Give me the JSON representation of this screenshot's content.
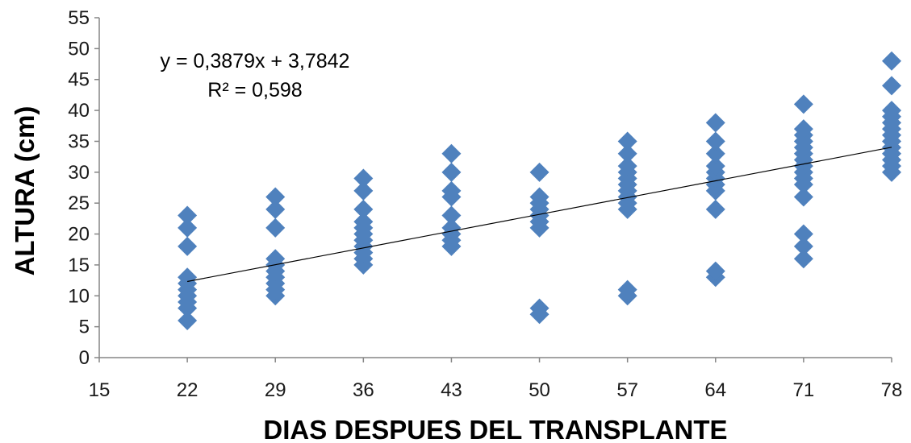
{
  "chart_data": {
    "type": "scatter",
    "title": "",
    "xlabel": "DIAS DESPUES DEL TRANSPLANTE",
    "ylabel": "ALTURA (cm)",
    "xlim": [
      15,
      78
    ],
    "ylim": [
      0,
      55
    ],
    "x_ticks": [
      15,
      22,
      29,
      36,
      43,
      50,
      57,
      64,
      71,
      78
    ],
    "y_ticks": [
      0,
      5,
      10,
      15,
      20,
      25,
      30,
      35,
      40,
      45,
      50,
      55
    ],
    "grid": false,
    "legend": "none",
    "marker_color": "#4F81BD",
    "trendline_color": "#000000",
    "series": [
      {
        "points": [
          [
            22,
            6
          ],
          [
            22,
            8
          ],
          [
            22,
            9
          ],
          [
            22,
            10
          ],
          [
            22,
            11
          ],
          [
            22,
            12
          ],
          [
            22,
            13
          ],
          [
            22,
            18
          ],
          [
            22,
            21
          ],
          [
            22,
            23
          ],
          [
            29,
            10
          ],
          [
            29,
            11
          ],
          [
            29,
            12
          ],
          [
            29,
            13
          ],
          [
            29,
            14
          ],
          [
            29,
            15
          ],
          [
            29,
            16
          ],
          [
            29,
            21
          ],
          [
            29,
            24
          ],
          [
            29,
            26
          ],
          [
            36,
            15
          ],
          [
            36,
            16
          ],
          [
            36,
            17
          ],
          [
            36,
            18
          ],
          [
            36,
            19
          ],
          [
            36,
            20
          ],
          [
            36,
            21
          ],
          [
            36,
            22
          ],
          [
            36,
            24
          ],
          [
            36,
            27
          ],
          [
            36,
            29
          ],
          [
            43,
            18
          ],
          [
            43,
            19
          ],
          [
            43,
            20
          ],
          [
            43,
            21
          ],
          [
            43,
            23
          ],
          [
            43,
            26
          ],
          [
            43,
            27
          ],
          [
            43,
            30
          ],
          [
            43,
            33
          ],
          [
            50,
            7
          ],
          [
            50,
            8
          ],
          [
            50,
            21
          ],
          [
            50,
            22
          ],
          [
            50,
            23
          ],
          [
            50,
            24
          ],
          [
            50,
            25
          ],
          [
            50,
            26
          ],
          [
            50,
            30
          ],
          [
            57,
            10
          ],
          [
            57,
            11
          ],
          [
            57,
            24
          ],
          [
            57,
            25
          ],
          [
            57,
            26
          ],
          [
            57,
            27
          ],
          [
            57,
            28
          ],
          [
            57,
            29
          ],
          [
            57,
            30
          ],
          [
            57,
            31
          ],
          [
            57,
            33
          ],
          [
            57,
            35
          ],
          [
            64,
            13
          ],
          [
            64,
            14
          ],
          [
            64,
            24
          ],
          [
            64,
            27
          ],
          [
            64,
            28
          ],
          [
            64,
            29
          ],
          [
            64,
            30
          ],
          [
            64,
            31
          ],
          [
            64,
            33
          ],
          [
            64,
            35
          ],
          [
            64,
            38
          ],
          [
            71,
            16
          ],
          [
            71,
            18
          ],
          [
            71,
            20
          ],
          [
            71,
            26
          ],
          [
            71,
            28
          ],
          [
            71,
            29
          ],
          [
            71,
            30
          ],
          [
            71,
            31
          ],
          [
            71,
            32
          ],
          [
            71,
            33
          ],
          [
            71,
            34
          ],
          [
            71,
            35
          ],
          [
            71,
            36
          ],
          [
            71,
            37
          ],
          [
            71,
            41
          ],
          [
            78,
            30
          ],
          [
            78,
            31
          ],
          [
            78,
            32
          ],
          [
            78,
            33
          ],
          [
            78,
            34
          ],
          [
            78,
            35
          ],
          [
            78,
            36
          ],
          [
            78,
            37
          ],
          [
            78,
            38
          ],
          [
            78,
            39
          ],
          [
            78,
            40
          ],
          [
            78,
            44
          ],
          [
            78,
            48
          ]
        ]
      }
    ],
    "trendline": {
      "slope": 0.3879,
      "intercept": 3.7842,
      "x_range": [
        22,
        78
      ],
      "equation_label": "y = 0,3879x + 3,7842",
      "r2_label": "R² = 0,598"
    }
  }
}
